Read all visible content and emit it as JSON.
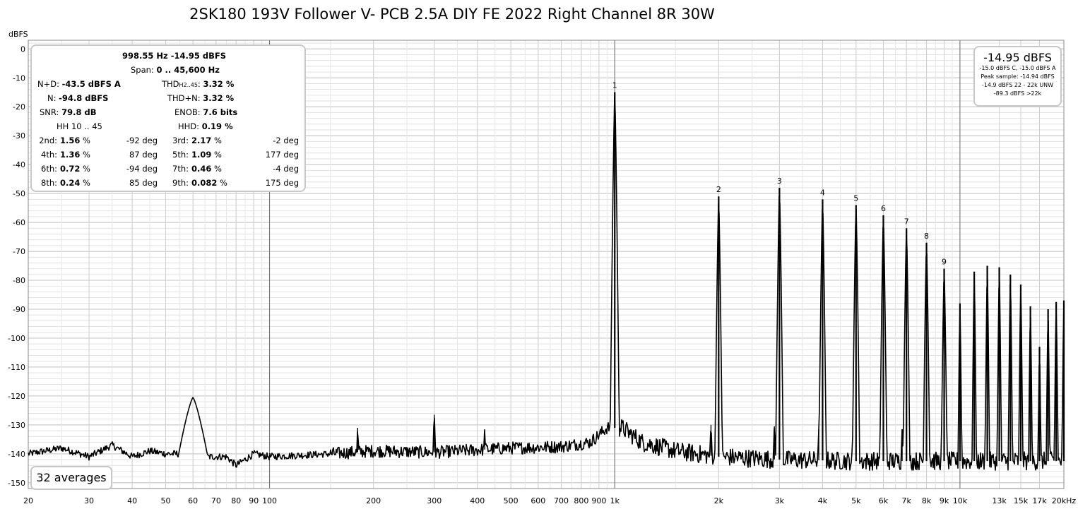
{
  "chart_data": {
    "type": "line",
    "title": "2SK180 193V Follower V- PCB 2.5A DIY FE 2022 Right Channel 8R 30W",
    "ylabel": "dBFS",
    "xlabel": "",
    "xscale": "log",
    "xlim": [
      20,
      20000
    ],
    "ylim": [
      -152,
      3
    ],
    "grid": true,
    "x_ticks": [
      "20",
      "30",
      "40",
      "50",
      "60",
      "70",
      "80",
      "90",
      "100",
      "200",
      "300",
      "400",
      "500",
      "600",
      "700",
      "800",
      "900",
      "1k",
      "2k",
      "3k",
      "4k",
      "5k",
      "6k",
      "7k",
      "8k",
      "9k",
      "10k",
      "13k",
      "15k",
      "17k",
      "20kHz"
    ],
    "x_tick_values": [
      20,
      30,
      40,
      50,
      60,
      70,
      80,
      90,
      100,
      200,
      300,
      400,
      500,
      600,
      700,
      800,
      900,
      1000,
      2000,
      3000,
      4000,
      5000,
      6000,
      7000,
      8000,
      9000,
      10000,
      13000,
      15000,
      17000,
      20000
    ],
    "y_ticks": [
      "0",
      "-10",
      "-20",
      "-30",
      "-40",
      "-50",
      "-60",
      "-70",
      "-80",
      "-90",
      "-100",
      "-110",
      "-120",
      "-130",
      "-140",
      "-150"
    ],
    "y_tick_values": [
      0,
      -10,
      -20,
      -30,
      -40,
      -50,
      -60,
      -70,
      -80,
      -90,
      -100,
      -110,
      -120,
      -130,
      -140,
      -150
    ],
    "harmonics": [
      {
        "label": "1",
        "freq": 1000,
        "level": -14.95
      },
      {
        "label": "2",
        "freq": 2000,
        "level": -51
      },
      {
        "label": "3",
        "freq": 3000,
        "level": -48
      },
      {
        "label": "4",
        "freq": 4000,
        "level": -52
      },
      {
        "label": "5",
        "freq": 5000,
        "level": -54
      },
      {
        "label": "6",
        "freq": 6000,
        "level": -57.5
      },
      {
        "label": "7",
        "freq": 7000,
        "level": -62
      },
      {
        "label": "8",
        "freq": 8000,
        "level": -67
      },
      {
        "label": "9",
        "freq": 9000,
        "level": -76
      }
    ],
    "high_spikes": [
      {
        "freq": 10000,
        "level": -88
      },
      {
        "freq": 11000,
        "level": -77
      },
      {
        "freq": 12000,
        "level": -75
      },
      {
        "freq": 13000,
        "level": -75.5
      },
      {
        "freq": 14000,
        "level": -78
      },
      {
        "freq": 15000,
        "level": -81.5
      },
      {
        "freq": 16000,
        "level": -89
      },
      {
        "freq": 17000,
        "level": -103
      },
      {
        "freq": 18000,
        "level": -90
      },
      {
        "freq": 19000,
        "level": -87.5
      },
      {
        "freq": 20000,
        "level": -87
      }
    ],
    "minor_spikes": [
      {
        "freq": 60,
        "level": -120.5,
        "width": 0.05
      },
      {
        "freq": 180,
        "level": -131
      },
      {
        "freq": 300,
        "level": -126.5
      },
      {
        "freq": 420,
        "level": -131.5
      },
      {
        "freq": 1900,
        "level": -130
      },
      {
        "freq": 2900,
        "level": -130.5
      },
      {
        "freq": 3900,
        "level": -131.5
      },
      {
        "freq": 6800,
        "level": -131.5
      }
    ],
    "noise_floor": [
      [
        20,
        -140
      ],
      [
        25,
        -138
      ],
      [
        30,
        -141
      ],
      [
        35,
        -137
      ],
      [
        40,
        -141
      ],
      [
        45,
        -139
      ],
      [
        50,
        -140
      ],
      [
        55,
        -140
      ],
      [
        58,
        -139
      ],
      [
        65,
        -141
      ],
      [
        75,
        -141
      ],
      [
        80,
        -144
      ],
      [
        90,
        -140
      ],
      [
        100,
        -141
      ],
      [
        150,
        -140
      ],
      [
        200,
        -139
      ],
      [
        300,
        -139.5
      ],
      [
        500,
        -138
      ],
      [
        700,
        -137.5
      ],
      [
        850,
        -136
      ],
      [
        950,
        -131
      ],
      [
        1050,
        -131
      ],
      [
        1200,
        -136
      ],
      [
        1500,
        -139
      ],
      [
        2000,
        -141
      ],
      [
        3000,
        -142
      ],
      [
        5000,
        -142.5
      ],
      [
        10000,
        -142.5
      ],
      [
        20000,
        -142.5
      ]
    ]
  },
  "info": {
    "freq_level": "998.55 Hz  -14.95 dBFS",
    "span_label": "Span:",
    "span_value": "0 .. 45,600 Hz",
    "nd_label": "N+D:",
    "nd_value": "-43.5 dBFS A",
    "thd_label_main": "THD",
    "thd_label_sub": "H2..45",
    "thd_label_end": ":",
    "thd_value": "3.32 %",
    "n_label": "N:",
    "n_value": "-94.8 dBFS",
    "thdn_label": "THD+N:",
    "thdn_value": "3.32 %",
    "snr_label": "SNR:",
    "snr_value": "79.8 dB",
    "enob_label": "ENOB:",
    "enob_value": "7.6 bits",
    "hh_label": "HH 10 .. 45",
    "hhd_label": "HHD:",
    "hhd_value": "0.19 %",
    "harmonics": [
      {
        "l_label": "2nd:",
        "l_value": "1.56",
        "l_unit": "%",
        "l_phase": "-92 deg",
        "r_label": "3rd:",
        "r_value": "2.17",
        "r_unit": "%",
        "r_phase": "-2 deg"
      },
      {
        "l_label": "4th:",
        "l_value": "1.36",
        "l_unit": "%",
        "l_phase": "87 deg",
        "r_label": "5th:",
        "r_value": "1.09",
        "r_unit": "%",
        "r_phase": "177 deg"
      },
      {
        "l_label": "6th:",
        "l_value": "0.72",
        "l_unit": "%",
        "l_phase": "-94 deg",
        "r_label": "7th:",
        "r_value": "0.46",
        "r_unit": "%",
        "r_phase": "-4 deg"
      },
      {
        "l_label": "8th:",
        "l_value": "0.24",
        "l_unit": "%",
        "l_phase": "85 deg",
        "r_label": "9th:",
        "r_value": "0.082",
        "r_unit": "%",
        "r_phase": "175 deg"
      }
    ]
  },
  "peak": {
    "main": "-14.95 dBFS",
    "line1": "-15.0 dBFS C, -15.0 dBFS A",
    "line2": "Peak sample: -14.94 dBFS",
    "line3": "-14.9 dBFS 22 - 22k UNW",
    "line4": "-89.3 dBFS >22k"
  },
  "averages": "32 averages",
  "colors": {
    "trace": "#000000",
    "grid_major": "#888888",
    "grid_minor": "#e2e2e2",
    "box_border": "#c8c8c8"
  }
}
